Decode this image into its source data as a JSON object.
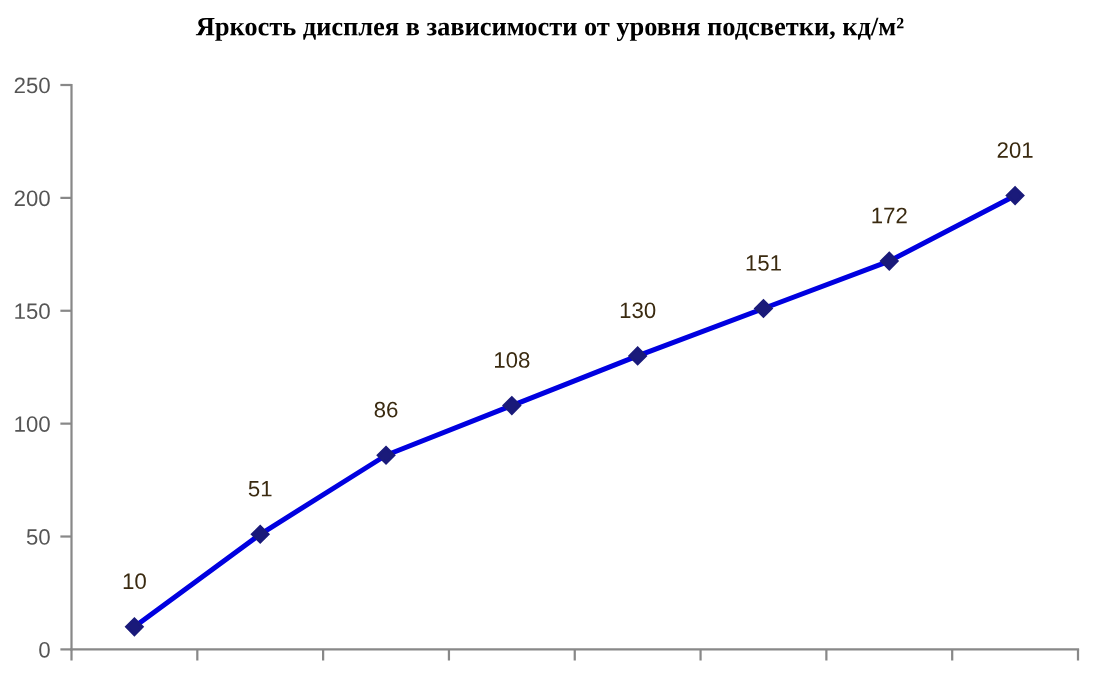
{
  "chart_data": {
    "type": "line",
    "title": "Яркость дисплея в зависимости от уровня подсветки, кд/м²",
    "categories": [
      null,
      null,
      null,
      null,
      null,
      null,
      null,
      null
    ],
    "series": [
      {
        "color": "#0000e0",
        "values": [
          10,
          51,
          86,
          108,
          130,
          151,
          172,
          201
        ]
      }
    ],
    "ylim": [
      0,
      250
    ],
    "yticks": [
      0,
      50,
      100,
      150,
      200,
      250
    ],
    "grid": false,
    "legend": false,
    "marker": "diamond",
    "line_style": "solid",
    "data_labels": true
  }
}
